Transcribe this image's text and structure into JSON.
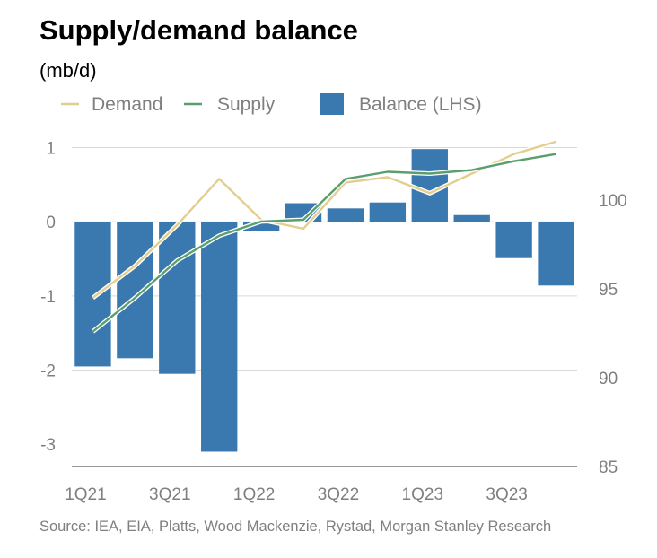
{
  "title": "Supply/demand balance",
  "unit": "(mb/d)",
  "source": "Source: IEA, EIA, Platts, Wood Mackenzie, Rystad, Morgan Stanley Research",
  "chart_data": {
    "type": "bar+line",
    "categories": [
      "1Q21",
      "2Q21",
      "3Q21",
      "4Q21",
      "1Q22",
      "2Q22",
      "3Q22",
      "4Q22",
      "1Q23",
      "2Q23",
      "3Q23",
      "4Q23"
    ],
    "x_tick_labels": [
      "1Q21",
      "3Q21",
      "1Q22",
      "3Q22",
      "1Q23",
      "3Q23"
    ],
    "bar_series": {
      "name": "Balance (LHS)",
      "color": "#3a78b0",
      "axis": "left",
      "values": [
        -1.95,
        -1.84,
        -2.05,
        -3.1,
        -0.12,
        0.25,
        0.18,
        0.26,
        0.98,
        0.09,
        -0.49,
        -0.86
      ]
    },
    "line_series": [
      {
        "name": "Demand",
        "color": "#e3ce8f",
        "axis": "right",
        "values": [
          94.5,
          96.3,
          98.6,
          101.2,
          98.9,
          98.4,
          101.0,
          101.3,
          100.4,
          101.5,
          102.6,
          103.3
        ]
      },
      {
        "name": "Supply",
        "color": "#5b9e6e",
        "axis": "right",
        "values": [
          92.6,
          94.5,
          96.6,
          98.0,
          98.8,
          98.9,
          101.2,
          101.6,
          101.5,
          101.7,
          102.2,
          102.6
        ]
      }
    ],
    "left_axis": {
      "ylim": [
        -3.3,
        1.2
      ],
      "ticks": [
        1,
        0,
        -1,
        -2,
        -3
      ],
      "tick_labels": [
        "1",
        "0",
        "-1",
        "-2",
        "-3"
      ]
    },
    "right_axis": {
      "ylim": [
        85,
        103.8
      ],
      "ticks": [
        100,
        95,
        90,
        85
      ],
      "tick_labels": [
        "100",
        "95",
        "90",
        "85"
      ]
    },
    "legend": [
      {
        "label": "Demand",
        "kind": "line",
        "color": "#e3ce8f"
      },
      {
        "label": "Supply",
        "kind": "line",
        "color": "#5b9e6e"
      },
      {
        "label": "Balance (LHS)",
        "kind": "bar",
        "color": "#3a78b0"
      }
    ],
    "legend_position": "top",
    "grid": true
  }
}
